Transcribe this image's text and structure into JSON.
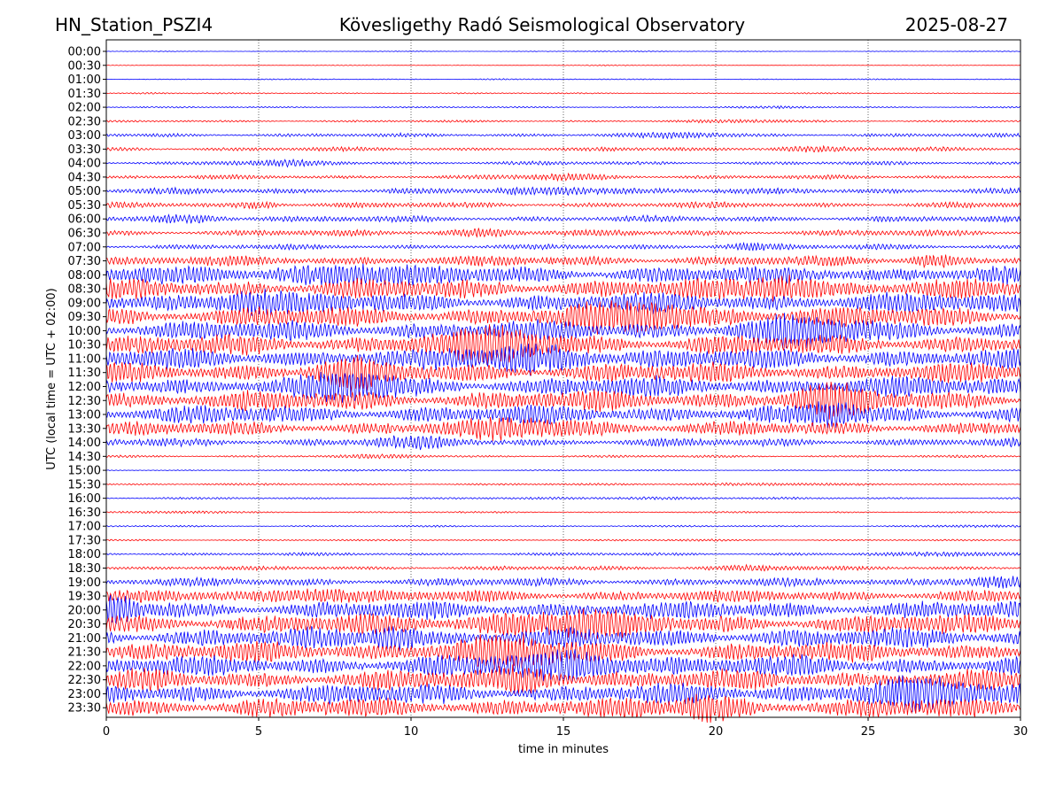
{
  "chart_data": {
    "type": "line",
    "title_left": "HN_Station_PSZI4",
    "title_center": "Kövesligethy Radó Seismological Observatory",
    "title_right": "2025-08-27",
    "xlabel": "time in minutes",
    "ylabel": "UTC (local time = UTC + 02:00)",
    "xlim": [
      0,
      30
    ],
    "x_ticks": [
      0,
      5,
      10,
      15,
      20,
      25,
      30
    ],
    "x_grid": "dotted vertical lines at 5, 10, 15, 20, 25",
    "colors": [
      "#0000ff",
      "#ff0000"
    ],
    "trace_labels": [
      "00:00",
      "00:30",
      "01:00",
      "01:30",
      "02:00",
      "02:30",
      "03:00",
      "03:30",
      "04:00",
      "04:30",
      "05:00",
      "05:30",
      "06:00",
      "06:30",
      "07:00",
      "07:30",
      "08:00",
      "08:30",
      "09:00",
      "09:30",
      "10:00",
      "10:30",
      "11:00",
      "11:30",
      "12:00",
      "12:30",
      "13:00",
      "13:30",
      "14:00",
      "14:30",
      "15:00",
      "15:30",
      "16:00",
      "16:30",
      "17:00",
      "17:30",
      "18:00",
      "18:30",
      "19:00",
      "19:30",
      "20:00",
      "20:30",
      "21:00",
      "21:30",
      "22:00",
      "22:30",
      "23:00",
      "23:30"
    ],
    "relative_amplitude": [
      0.03,
      0.03,
      0.05,
      0.06,
      0.07,
      0.1,
      0.18,
      0.2,
      0.18,
      0.2,
      0.3,
      0.28,
      0.3,
      0.3,
      0.25,
      0.5,
      0.9,
      1.0,
      1.0,
      1.0,
      1.0,
      1.0,
      1.0,
      1.0,
      1.0,
      1.0,
      0.9,
      0.7,
      0.4,
      0.12,
      0.06,
      0.1,
      0.1,
      0.08,
      0.08,
      0.08,
      0.15,
      0.2,
      0.4,
      0.6,
      0.9,
      1.0,
      1.0,
      1.0,
      1.0,
      1.0,
      1.0,
      1.0
    ]
  }
}
